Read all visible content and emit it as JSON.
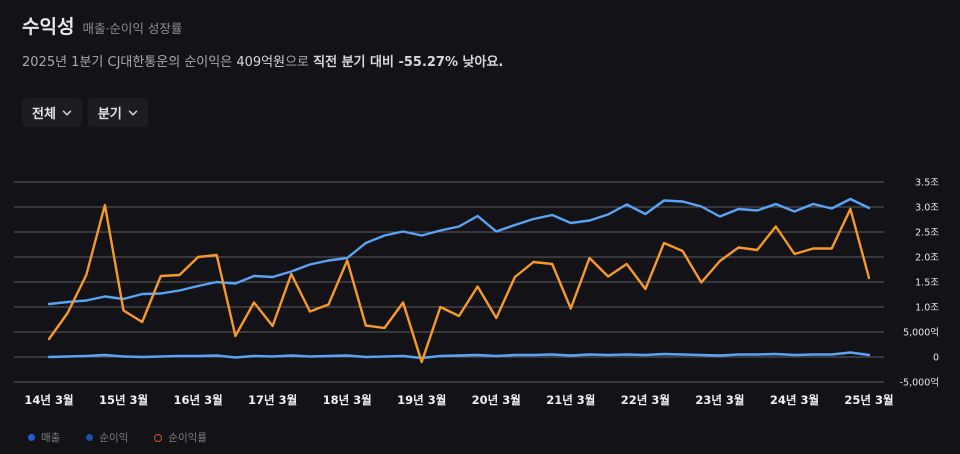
{
  "header": {
    "title": "수익성",
    "subtitle": "매출·순이익 성장률"
  },
  "summary": {
    "prefix": "2025년 1분기 CJ대한통운의 순이익은 ",
    "amount": "409억원",
    "middle": "으로 ",
    "emphasis": "직전 분기 대비 -55.27% 낮아요."
  },
  "filters": {
    "range": "전체",
    "period": "분기"
  },
  "legend": [
    {
      "label": "매출",
      "color": "#1d5fd1",
      "style": "dot"
    },
    {
      "label": "순이익",
      "color": "#1d4fb0",
      "style": "dot"
    },
    {
      "label": "순이익률",
      "color": "#c9542a",
      "style": "ring"
    }
  ],
  "colors": {
    "background": "#121217",
    "revenue_line": "#5aa4f5",
    "net_income_line": "#5aa4f5",
    "margin_line": "#f59a2a",
    "grid": "#5c5c66"
  },
  "chart_data": {
    "type": "line",
    "y_axis_side": "right",
    "yticks": [
      {
        "value": 3.5,
        "label": "3.5조"
      },
      {
        "value": 3.0,
        "label": "3.0조"
      },
      {
        "value": 2.5,
        "label": "2.5조"
      },
      {
        "value": 2.0,
        "label": "2.0조"
      },
      {
        "value": 1.5,
        "label": "1.5조"
      },
      {
        "value": 1.0,
        "label": "1.0조"
      },
      {
        "value": 0.5,
        "label": "5,000억"
      },
      {
        "value": 0,
        "label": "0"
      },
      {
        "value": -0.5,
        "label": "-5,000억"
      }
    ],
    "ylim": [
      -0.5,
      3.5
    ],
    "xticks": [
      "14년 3월",
      "15년 3월",
      "16년 3월",
      "17년 3월",
      "18년 3월",
      "19년 3월",
      "20년 3월",
      "21년 3월",
      "22년 3월",
      "23년 3월",
      "24년 3월",
      "25년 3월"
    ],
    "x_start_year": 2014,
    "series": [
      {
        "name": "매출",
        "axis": "left",
        "values": [
          1.06,
          1.1,
          1.13,
          1.21,
          1.16,
          1.26,
          1.27,
          1.33,
          1.42,
          1.5,
          1.47,
          1.62,
          1.6,
          1.71,
          1.85,
          1.93,
          1.98,
          2.28,
          2.43,
          2.51,
          2.43,
          2.53,
          2.61,
          2.82,
          2.51,
          2.64,
          2.76,
          2.84,
          2.68,
          2.73,
          2.85,
          3.05,
          2.86,
          3.13,
          3.11,
          3.01,
          2.81,
          2.96,
          2.93,
          3.06,
          2.91,
          3.06,
          2.97,
          3.16,
          2.98
        ]
      },
      {
        "name": "순이익",
        "axis": "left",
        "values": [
          0.0,
          0.01,
          0.02,
          0.04,
          0.01,
          0.0,
          0.01,
          0.02,
          0.02,
          0.03,
          -0.01,
          0.02,
          0.01,
          0.03,
          0.01,
          0.02,
          0.03,
          0.0,
          0.01,
          0.02,
          -0.02,
          0.02,
          0.03,
          0.04,
          0.02,
          0.04,
          0.04,
          0.05,
          0.03,
          0.05,
          0.04,
          0.05,
          0.04,
          0.06,
          0.05,
          0.04,
          0.03,
          0.05,
          0.05,
          0.06,
          0.04,
          0.05,
          0.05,
          0.09,
          0.04
        ]
      },
      {
        "name": "순이익률",
        "axis": "right",
        "values": [
          0.36,
          0.88,
          1.64,
          3.04,
          0.93,
          0.7,
          1.62,
          1.64,
          2.0,
          2.04,
          0.42,
          1.09,
          0.62,
          1.66,
          0.91,
          1.05,
          1.93,
          0.63,
          0.58,
          1.09,
          -0.1,
          1.0,
          0.82,
          1.41,
          0.78,
          1.6,
          1.9,
          1.86,
          0.97,
          1.98,
          1.61,
          1.86,
          1.36,
          2.28,
          2.12,
          1.49,
          1.92,
          2.19,
          2.14,
          2.61,
          2.06,
          2.17,
          2.17,
          2.96,
          1.58
        ]
      }
    ]
  }
}
